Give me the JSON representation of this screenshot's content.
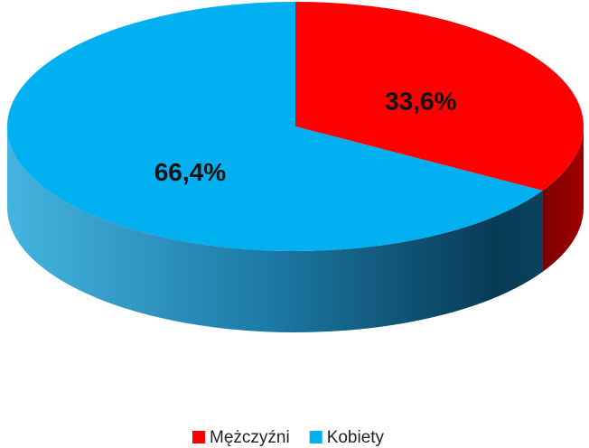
{
  "chart_data": {
    "type": "pie",
    "categories": [
      "Mężczyźni",
      "Kobiety"
    ],
    "values": [
      33.6,
      66.4
    ],
    "value_labels": [
      "33,6%",
      "66,4%"
    ],
    "colors": [
      "#ff0000",
      "#00b0f0"
    ],
    "legend": "bottom"
  }
}
